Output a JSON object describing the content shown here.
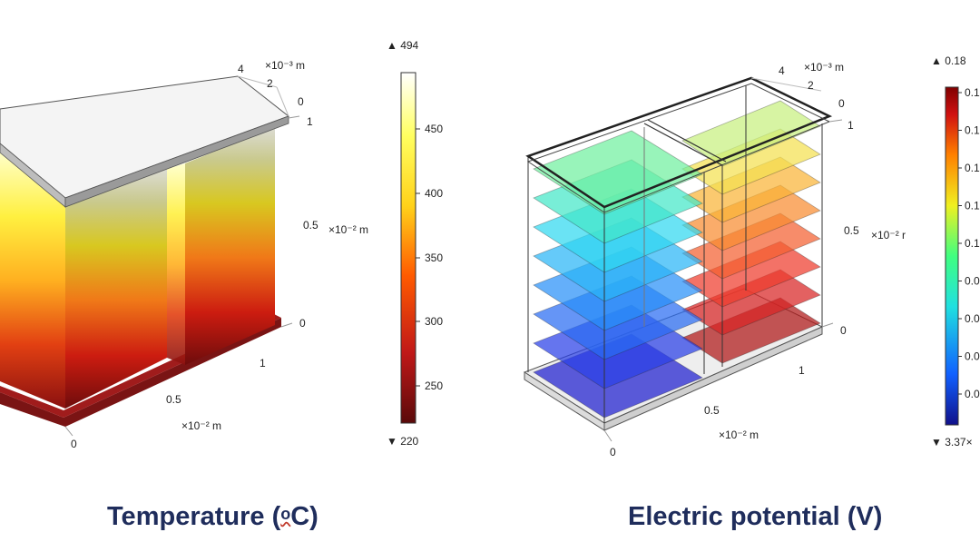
{
  "temperature_plot": {
    "caption_before": "Temperature (",
    "caption_unit_o": "o",
    "caption_unit_rest": "C)",
    "axes": {
      "x_scale": "×10⁻² m",
      "x_ticks": [
        "0",
        "0.5",
        "1"
      ],
      "y_scale": "×10⁻³ m",
      "y_ticks": [
        "4",
        "2",
        "0"
      ],
      "z_scale": "×10⁻² m",
      "z_ticks": [
        "1",
        "0.5",
        "0"
      ]
    },
    "colorbar": {
      "max_label": "▲ 494",
      "min_label": "▼ 220",
      "tick_labels": [
        "450",
        "400",
        "350",
        "300",
        "250"
      ],
      "colors": [
        "#5a0a0a",
        "#c01818",
        "#ff5a00",
        "#ffd21a",
        "#ffff60",
        "#ffffff"
      ]
    }
  },
  "potential_plot": {
    "caption": "Electric potential (V)",
    "axes": {
      "x_scale": "×10⁻² m",
      "x_ticks": [
        "0",
        "0.5",
        "1"
      ],
      "y_scale": "×10⁻³ m",
      "y_ticks": [
        "4",
        "2",
        "0"
      ],
      "z_scale": "×10⁻² r",
      "z_ticks": [
        "1",
        "0.5",
        "0"
      ]
    },
    "colorbar": {
      "max_label": "▲ 0.18",
      "min_label": "▼ 3.37×",
      "tick_labels": [
        "0.1",
        "0.1",
        "0.1",
        "0.1",
        "0.1",
        "0.0",
        "0.0",
        "0.0",
        "0.0"
      ],
      "colors": [
        "#10108a",
        "#1060ff",
        "#20e0e0",
        "#40ff80",
        "#f0f020",
        "#ff8000",
        "#d01010",
        "#800000"
      ]
    }
  }
}
